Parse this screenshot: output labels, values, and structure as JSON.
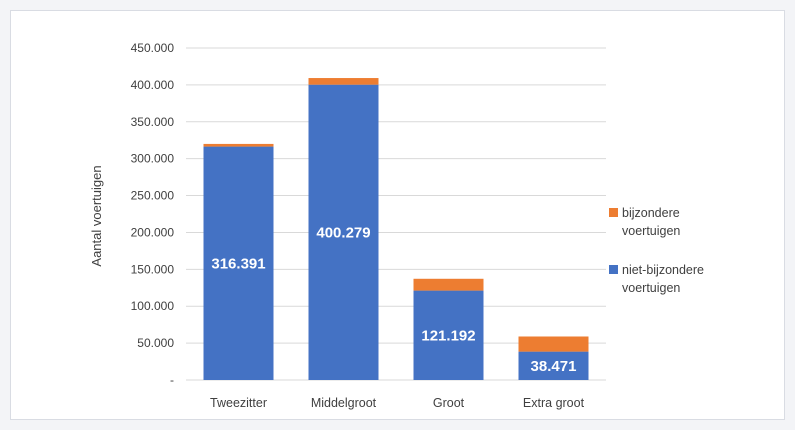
{
  "chart_data": {
    "type": "bar",
    "stacked": true,
    "categories": [
      "Tweezitter",
      "Middelgroot",
      "Groot",
      "Extra groot"
    ],
    "series": [
      {
        "name": "niet-bijzondere voertuigen",
        "values": [
          316391,
          400279,
          121192,
          38471
        ],
        "color": "#4472c4"
      },
      {
        "name": "bijzondere voertuigen",
        "values": [
          3600,
          9000,
          16000,
          20500
        ],
        "color": "#ed7d31"
      }
    ],
    "data_labels": [
      "316.391",
      "400.279",
      "121.192",
      "38.471"
    ],
    "ylabel": "Aantal voertuigen",
    "ylim": [
      0,
      450000
    ],
    "yticks": [
      0,
      50000,
      100000,
      150000,
      200000,
      250000,
      300000,
      350000,
      400000,
      450000
    ],
    "ytick_labels": [
      "-",
      "50.000",
      "100.000",
      "150.000",
      "200.000",
      "250.000",
      "300.000",
      "350.000",
      "400.000",
      "450.000"
    ],
    "grid": true,
    "legend_position": "right",
    "legend": [
      {
        "label_line1": "bijzondere",
        "label_line2": "voertuigen",
        "color": "#ed7d31"
      },
      {
        "label_line1": "niet-bijzondere",
        "label_line2": "voertuigen",
        "color": "#4472c4"
      }
    ]
  }
}
